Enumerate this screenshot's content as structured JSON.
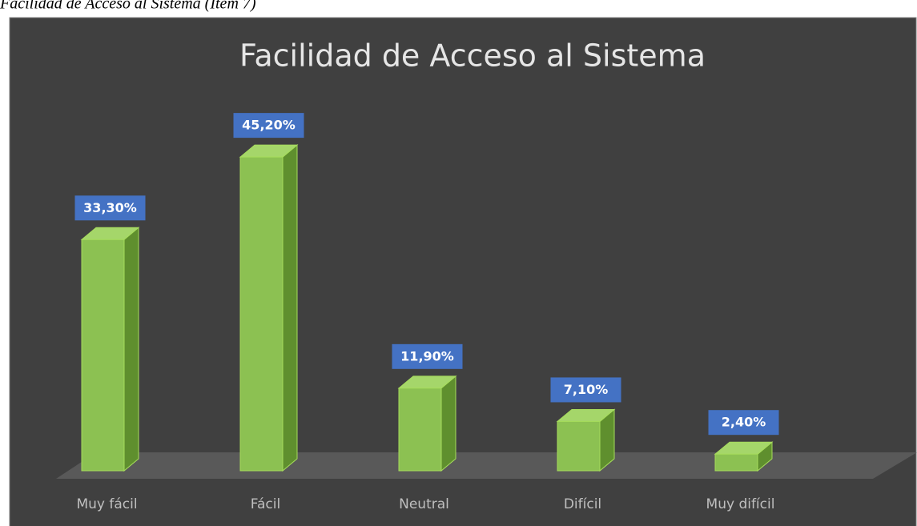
{
  "caption": "Facilidad de Acceso al Sistema (Ítem 7)",
  "chart_data": {
    "type": "bar3d",
    "title": "Facilidad de Acceso al Sistema",
    "categories": [
      "Muy fácil",
      "Fácil",
      "Neutral",
      "Difícil",
      "Muy difícil"
    ],
    "values": [
      33.3,
      45.2,
      11.9,
      7.1,
      2.4
    ],
    "value_labels": [
      "33,30%",
      "45,20%",
      "11,90%",
      "7,10%",
      "2,40%"
    ],
    "color": "#8cc152"
  }
}
